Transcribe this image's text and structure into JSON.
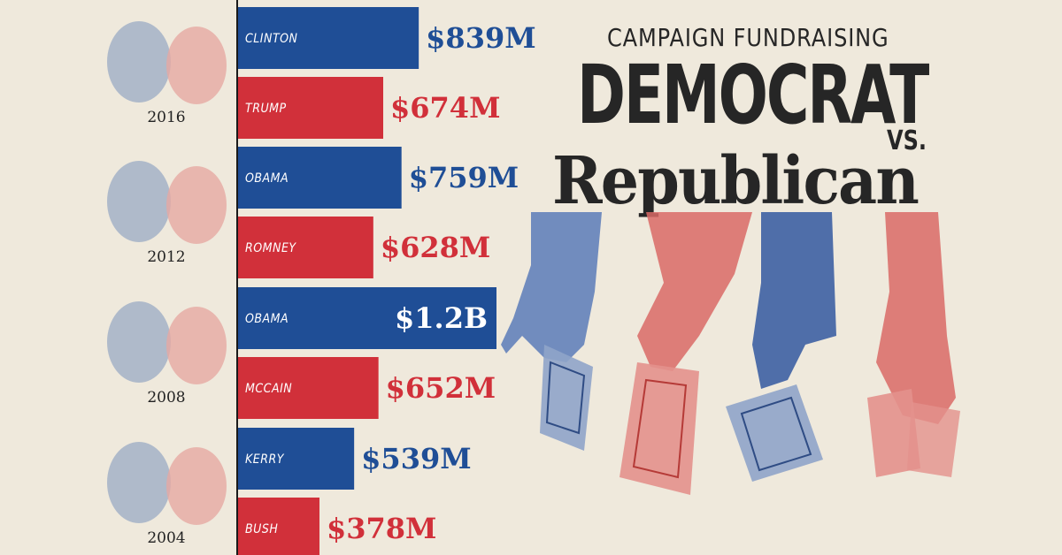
{
  "title": {
    "kicker": "CAMPAIGN FUNDRAISING",
    "main": "DEMOCRAT",
    "vs": "VS.",
    "sub": "Republican"
  },
  "colors": {
    "democrat": "#1f4e96",
    "republican": "#d1303a",
    "background": "#efe9dc",
    "text": "#262626"
  },
  "chart_data": {
    "type": "bar",
    "orientation": "horizontal",
    "unit": "USD millions",
    "xlim": [
      0,
      1200
    ],
    "groups": [
      {
        "year": "2016",
        "bars": [
          {
            "name": "CLINTON",
            "party": "democrat",
            "value": 839,
            "label": "$839M"
          },
          {
            "name": "TRUMP",
            "party": "republican",
            "value": 674,
            "label": "$674M"
          }
        ]
      },
      {
        "year": "2012",
        "bars": [
          {
            "name": "OBAMA",
            "party": "democrat",
            "value": 759,
            "label": "$759M"
          },
          {
            "name": "ROMNEY",
            "party": "republican",
            "value": 628,
            "label": "$628M"
          }
        ]
      },
      {
        "year": "2008",
        "bars": [
          {
            "name": "OBAMA",
            "party": "democrat",
            "value": 1200,
            "label": "$1.2B"
          },
          {
            "name": "MCCAIN",
            "party": "republican",
            "value": 652,
            "label": "$652M"
          }
        ]
      },
      {
        "year": "2004",
        "bars": [
          {
            "name": "KERRY",
            "party": "democrat",
            "value": 539,
            "label": "$539M"
          },
          {
            "name": "BUSH",
            "party": "republican",
            "value": 378,
            "label": "$378M"
          }
        ]
      }
    ]
  }
}
